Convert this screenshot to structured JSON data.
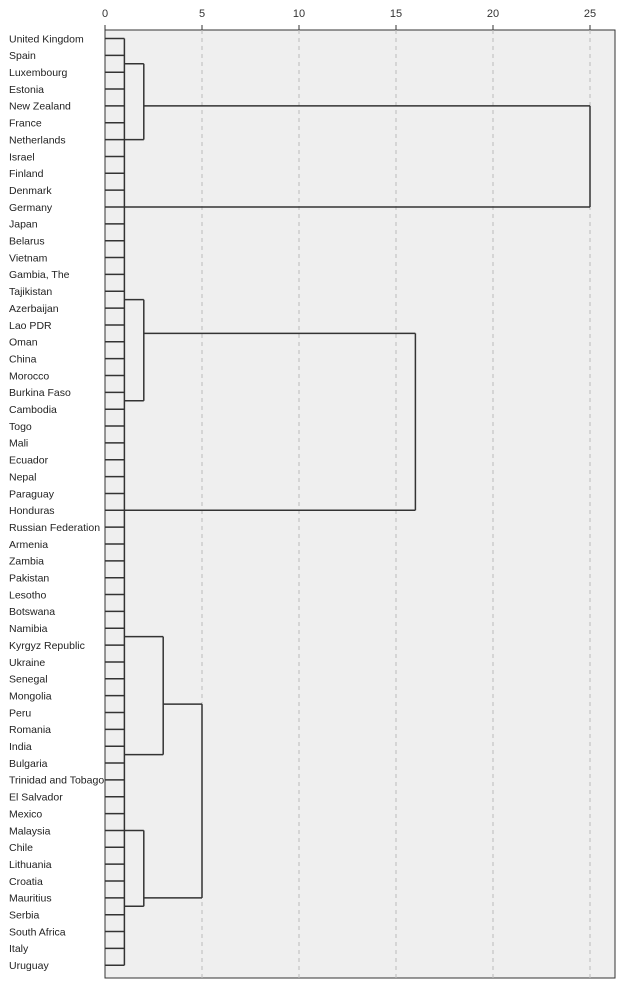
{
  "chart_data": {
    "type": "dendrogram",
    "title": "",
    "xlabel": "",
    "ylabel": "",
    "xlim": [
      0,
      26
    ],
    "x_ticks": [
      0,
      5,
      10,
      15,
      20,
      25
    ],
    "grid": "vertical dashed",
    "leaves": [
      "United Kingdom",
      "Spain",
      "Luxembourg",
      "Estonia",
      "New Zealand",
      "France",
      "Netherlands",
      "Israel",
      "Finland",
      "Denmark",
      "Germany",
      "Japan",
      "Belarus",
      "Vietnam",
      "Gambia, The",
      "Tajikistan",
      "Azerbaijan",
      "Lao PDR",
      "Oman",
      "China",
      "Morocco",
      "Burkina Faso",
      "Cambodia",
      "Togo",
      "Mali",
      "Ecuador",
      "Nepal",
      "Paraguay",
      "Honduras",
      "Russian Federation",
      "Armenia",
      "Zambia",
      "Pakistan",
      "Lesotho",
      "Botswana",
      "Namibia",
      "Kyrgyz Republic",
      "Ukraine",
      "Senegal",
      "Mongolia",
      "Peru",
      "Romania",
      "India",
      "Bulgaria",
      "Trinidad and Tobago",
      "El Salvador",
      "Mexico",
      "Malaysia",
      "Chile",
      "Lithuania",
      "Croatia",
      "Mauritius",
      "Serbia",
      "South Africa",
      "Italy",
      "Uruguay"
    ],
    "merges": [
      {
        "ranges": [
          [
            0,
            3
          ],
          [
            4,
            8
          ]
        ],
        "height": 2
      },
      {
        "ranges": [
          [
            0,
            8
          ],
          [
            9,
            11
          ]
        ],
        "height": 25
      },
      {
        "ranges": [
          [
            12,
            19
          ],
          [
            20,
            23
          ]
        ],
        "height": 2
      },
      {
        "ranges": [
          [
            12,
            23
          ],
          [
            24,
            32
          ]
        ],
        "height": 16
      },
      {
        "ranges": [
          [
            33,
            38
          ],
          [
            39,
            46
          ]
        ],
        "height": 3
      },
      {
        "ranges": [
          [
            47,
            47
          ],
          [
            48,
            55
          ]
        ],
        "height": 2
      },
      {
        "ranges": [
          [
            33,
            46
          ],
          [
            47,
            55
          ]
        ],
        "height": 5
      }
    ],
    "cluster_height": 1
  }
}
